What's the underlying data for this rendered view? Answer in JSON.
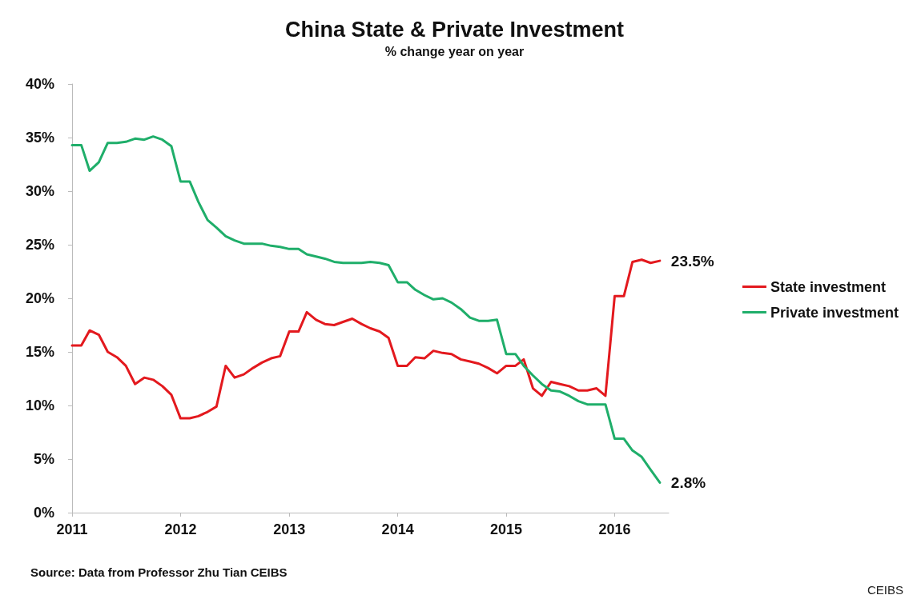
{
  "chart_data": {
    "type": "line",
    "title": "China State & Private Investment",
    "subtitle": "% change year on year",
    "x": [
      "2011-01",
      "2011-02",
      "2011-03",
      "2011-04",
      "2011-05",
      "2011-06",
      "2011-07",
      "2011-08",
      "2011-09",
      "2011-10",
      "2011-11",
      "2011-12",
      "2012-01",
      "2012-02",
      "2012-03",
      "2012-04",
      "2012-05",
      "2012-06",
      "2012-07",
      "2012-08",
      "2012-09",
      "2012-10",
      "2012-11",
      "2012-12",
      "2013-01",
      "2013-02",
      "2013-03",
      "2013-04",
      "2013-05",
      "2013-06",
      "2013-07",
      "2013-08",
      "2013-09",
      "2013-10",
      "2013-11",
      "2013-12",
      "2014-01",
      "2014-02",
      "2014-03",
      "2014-04",
      "2014-05",
      "2014-06",
      "2014-07",
      "2014-08",
      "2014-09",
      "2014-10",
      "2014-11",
      "2014-12",
      "2015-01",
      "2015-02",
      "2015-03",
      "2015-04",
      "2015-05",
      "2015-06",
      "2015-07",
      "2015-08",
      "2015-09",
      "2015-10",
      "2015-11",
      "2015-12",
      "2016-01",
      "2016-02",
      "2016-03",
      "2016-04",
      "2016-05",
      "2016-06"
    ],
    "series": [
      {
        "name": "State investment",
        "color": "#e3191e",
        "values": [
          15.6,
          15.6,
          17.0,
          16.6,
          15.0,
          14.5,
          13.7,
          12.0,
          12.6,
          12.4,
          11.8,
          11.0,
          8.8,
          8.8,
          9.0,
          9.4,
          9.9,
          13.7,
          12.6,
          12.9,
          13.5,
          14.0,
          14.4,
          14.6,
          16.9,
          16.9,
          18.7,
          18.0,
          17.6,
          17.5,
          17.8,
          18.1,
          17.6,
          17.2,
          16.9,
          16.3,
          13.7,
          13.7,
          14.5,
          14.4,
          15.1,
          14.9,
          14.8,
          14.3,
          14.1,
          13.9,
          13.5,
          13.0,
          13.7,
          13.7,
          14.3,
          11.6,
          10.9,
          12.2,
          12.0,
          11.8,
          11.4,
          11.4,
          11.6,
          10.9,
          20.2,
          20.2,
          23.4,
          23.6,
          23.3,
          23.5
        ]
      },
      {
        "name": "Private investment",
        "color": "#1fae6a",
        "values": [
          34.3,
          34.3,
          31.9,
          32.7,
          34.5,
          34.5,
          34.6,
          34.9,
          34.8,
          35.1,
          34.8,
          34.2,
          30.9,
          30.9,
          29.0,
          27.3,
          26.6,
          25.8,
          25.4,
          25.1,
          25.1,
          25.1,
          24.9,
          24.8,
          24.6,
          24.6,
          24.1,
          23.9,
          23.7,
          23.4,
          23.3,
          23.3,
          23.3,
          23.4,
          23.3,
          23.1,
          21.5,
          21.5,
          20.8,
          20.3,
          19.9,
          20.0,
          19.6,
          19.0,
          18.2,
          17.9,
          17.9,
          18.0,
          14.8,
          14.8,
          13.7,
          12.8,
          12.0,
          11.4,
          11.3,
          10.9,
          10.4,
          10.1,
          10.1,
          10.1,
          6.9,
          6.9,
          5.8,
          5.2,
          4.0,
          2.8
        ]
      }
    ],
    "xlim": [
      "2011-01",
      "2016-07"
    ],
    "xticks": [
      {
        "value": "2011",
        "label": "2011"
      },
      {
        "value": "2012",
        "label": "2012"
      },
      {
        "value": "2013",
        "label": "2013"
      },
      {
        "value": "2014",
        "label": "2014"
      },
      {
        "value": "2015",
        "label": "2015"
      },
      {
        "value": "2016",
        "label": "2016"
      }
    ],
    "ylim": [
      0,
      40
    ],
    "yticks": [
      {
        "value": 0,
        "label": "0%"
      },
      {
        "value": 5,
        "label": "5%"
      },
      {
        "value": 10,
        "label": "10%"
      },
      {
        "value": 15,
        "label": "15%"
      },
      {
        "value": 20,
        "label": "20%"
      },
      {
        "value": 25,
        "label": "25%"
      },
      {
        "value": 30,
        "label": "30%"
      },
      {
        "value": 35,
        "label": "35%"
      },
      {
        "value": 40,
        "label": "40%"
      }
    ],
    "annotations": [
      {
        "text": "23.5%",
        "x": "2016-06",
        "y": 23.5
      },
      {
        "text": "2.8%",
        "x": "2016-06",
        "y": 2.8
      },
      "Source: Data from Professor Zhu Tian CEIBS",
      "CEIBS"
    ],
    "legend": "right",
    "grid": false,
    "marker": "none",
    "line_style": "solid"
  }
}
